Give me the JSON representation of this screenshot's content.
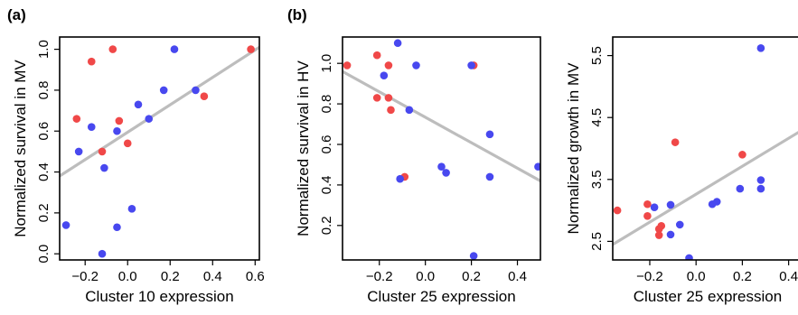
{
  "figure": {
    "panel_letters": [
      "(a)",
      "(b)"
    ]
  },
  "colors": {
    "red_point": "#f04848",
    "blue_point": "#4848ef",
    "fit_line": "#bdbdbd",
    "axis": "#000000"
  },
  "chart_data": [
    {
      "type": "scatter",
      "panel_label": "(a)",
      "title": "",
      "xlabel": "Cluster 10 expression",
      "ylabel": "Normalized survival in MV",
      "xlim": [
        -0.32,
        0.62
      ],
      "ylim": [
        -0.03,
        1.06
      ],
      "xticks": [
        -0.2,
        0.0,
        0.2,
        0.4,
        0.6
      ],
      "xtick_labels": [
        "−0.2",
        "0.0",
        "0.2",
        "0.4",
        "0.6"
      ],
      "yticks": [
        0.0,
        0.2,
        0.4,
        0.6,
        0.8,
        1.0
      ],
      "ytick_labels": [
        "0.0",
        "0.2",
        "0.4",
        "0.6",
        "0.8",
        "1.0"
      ],
      "grid": false,
      "legend": "none",
      "series": [
        {
          "color": "red",
          "points": [
            [
              -0.07,
              1.0
            ],
            [
              -0.17,
              0.94
            ],
            [
              -0.24,
              0.66
            ],
            [
              -0.04,
              0.65
            ],
            [
              -0.12,
              0.5
            ],
            [
              0.0,
              0.54
            ],
            [
              0.36,
              0.77
            ],
            [
              0.58,
              1.0
            ]
          ]
        },
        {
          "color": "blue",
          "points": [
            [
              0.22,
              1.0
            ],
            [
              0.17,
              0.8
            ],
            [
              0.32,
              0.8
            ],
            [
              0.05,
              0.73
            ],
            [
              0.1,
              0.66
            ],
            [
              -0.17,
              0.62
            ],
            [
              -0.05,
              0.6
            ],
            [
              -0.23,
              0.5
            ],
            [
              -0.11,
              0.42
            ],
            [
              0.02,
              0.22
            ],
            [
              -0.29,
              0.14
            ],
            [
              -0.05,
              0.13
            ],
            [
              -0.12,
              0.0
            ]
          ]
        }
      ],
      "fit_line": {
        "x": [
          -0.32,
          0.62
        ],
        "y": [
          0.38,
          1.01
        ]
      }
    },
    {
      "type": "scatter",
      "panel_label": "(b)",
      "title": "",
      "xlabel": "Cluster 25 expression",
      "ylabel": "Normalized survival in HV",
      "xlim": [
        -0.36,
        0.5
      ],
      "ylim": [
        0.03,
        1.13
      ],
      "xticks": [
        -0.2,
        0.0,
        0.2,
        0.4
      ],
      "xtick_labels": [
        "−0.2",
        "0.0",
        "0.2",
        "0.4"
      ],
      "yticks": [
        0.2,
        0.4,
        0.6,
        0.8,
        1.0
      ],
      "ytick_labels": [
        "0.2",
        "0.4",
        "0.6",
        "0.8",
        "1.0"
      ],
      "grid": false,
      "legend": "none",
      "series": [
        {
          "color": "red",
          "points": [
            [
              -0.34,
              0.99
            ],
            [
              -0.21,
              1.04
            ],
            [
              -0.16,
              0.99
            ],
            [
              -0.21,
              0.83
            ],
            [
              -0.16,
              0.83
            ],
            [
              -0.15,
              0.77
            ],
            [
              -0.09,
              0.44
            ],
            [
              0.21,
              0.99
            ]
          ]
        },
        {
          "color": "blue",
          "points": [
            [
              -0.12,
              1.1
            ],
            [
              -0.04,
              0.99
            ],
            [
              -0.18,
              0.94
            ],
            [
              -0.07,
              0.77
            ],
            [
              0.2,
              0.99
            ],
            [
              0.28,
              0.65
            ],
            [
              0.07,
              0.49
            ],
            [
              0.09,
              0.46
            ],
            [
              -0.11,
              0.43
            ],
            [
              0.28,
              0.44
            ],
            [
              0.49,
              0.49
            ],
            [
              0.21,
              0.05
            ]
          ]
        }
      ],
      "fit_line": {
        "x": [
          -0.36,
          0.5
        ],
        "y": [
          0.96,
          0.42
        ]
      }
    },
    {
      "type": "scatter",
      "panel_label": "",
      "title": "",
      "xlabel": "Cluster 25 expression",
      "ylabel": "Normalized growth in MV",
      "xlim": [
        -0.36,
        0.46
      ],
      "ylim": [
        2.2,
        5.8
      ],
      "xticks": [
        -0.2,
        0.0,
        0.2,
        0.4
      ],
      "xtick_labels": [
        "−0.2",
        "0.0",
        "0.2",
        "0.4"
      ],
      "yticks": [
        2.5,
        3.5,
        4.5,
        5.5
      ],
      "ytick_labels": [
        "2.5",
        "3.5",
        "4.5",
        "5.5"
      ],
      "grid": false,
      "legend": "none",
      "series": [
        {
          "color": "red",
          "points": [
            [
              -0.34,
              3.0
            ],
            [
              -0.21,
              3.1
            ],
            [
              -0.21,
              2.91
            ],
            [
              -0.15,
              2.75
            ],
            [
              -0.16,
              2.7
            ],
            [
              -0.16,
              2.6
            ],
            [
              -0.09,
              4.1
            ],
            [
              0.2,
              3.9
            ]
          ]
        },
        {
          "color": "blue",
          "points": [
            [
              0.28,
              5.62
            ],
            [
              -0.18,
              3.05
            ],
            [
              -0.11,
              3.09
            ],
            [
              -0.07,
              2.77
            ],
            [
              -0.11,
              2.61
            ],
            [
              0.07,
              3.1
            ],
            [
              0.09,
              3.14
            ],
            [
              0.19,
              3.35
            ],
            [
              0.28,
              3.49
            ],
            [
              0.28,
              3.35
            ],
            [
              -0.03,
              2.23
            ]
          ]
        }
      ],
      "fit_line": {
        "x": [
          -0.36,
          0.46
        ],
        "y": [
          2.45,
          4.3
        ]
      }
    }
  ]
}
